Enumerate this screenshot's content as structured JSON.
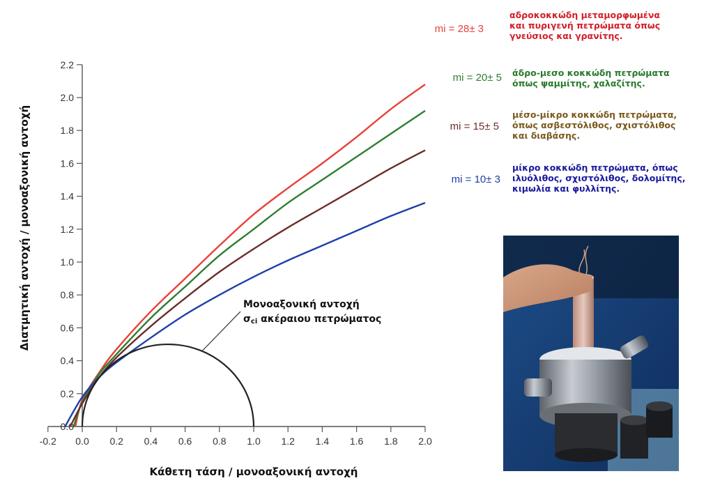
{
  "chart_data": {
    "type": "line",
    "xlabel": "Κάθετη τάση / μονοαξονική αντοχή",
    "ylabel": "Διατμητική αντοχή / μονοαξονική αντοχή",
    "xlim": [
      -0.2,
      2.0
    ],
    "ylim": [
      0.0,
      2.2
    ],
    "xticks": [
      "-0.2",
      "0.0",
      "0.2",
      "0.4",
      "0.6",
      "0.8",
      "1.0",
      "1.2",
      "1.4",
      "1.6",
      "1.8",
      "2.0"
    ],
    "yticks": [
      "0.0",
      "0.2",
      "0.4",
      "0.6",
      "0.8",
      "1.0",
      "1.2",
      "1.4",
      "1.6",
      "1.8",
      "2.0",
      "2.2"
    ],
    "grid": false,
    "series": [
      {
        "name": "mi = 28± 3",
        "color": "#e8413a",
        "description": [
          "αδροκοκκώδη μεταμορφωμένα",
          "και πυριγενή πετρώματα όπως",
          "γνεύσιος και γρανίτης."
        ],
        "description_color": "#d21f2a",
        "x": [
          -0.04,
          0.0,
          0.1,
          0.2,
          0.4,
          0.6,
          0.8,
          1.0,
          1.2,
          1.4,
          1.6,
          1.8,
          2.0
        ],
        "y": [
          0.0,
          0.16,
          0.33,
          0.47,
          0.7,
          0.9,
          1.1,
          1.29,
          1.45,
          1.6,
          1.76,
          1.93,
          2.08
        ]
      },
      {
        "name": "mi = 20± 5",
        "color": "#2f7d32",
        "description": [
          "άδρο-μεσο κοκκώδη πετρώματα",
          "όπως ψαμμίτης, χαλαζίτης."
        ],
        "description_color": "#2a7a2e",
        "x": [
          -0.05,
          0.0,
          0.1,
          0.2,
          0.4,
          0.6,
          0.8,
          1.0,
          1.2,
          1.4,
          1.6,
          1.8,
          2.0
        ],
        "y": [
          0.0,
          0.15,
          0.32,
          0.44,
          0.66,
          0.85,
          1.04,
          1.2,
          1.36,
          1.5,
          1.64,
          1.78,
          1.92
        ]
      },
      {
        "name": "mi = 15± 5",
        "color": "#6b2d2a",
        "description": [
          "μέσο-μίκρο κοκκώδη πετρώματα,",
          "όπως ασβεστόλιθος, σχιστόλιθος",
          "και διαβάσης."
        ],
        "description_color": "#7a5a1e",
        "x": [
          -0.07,
          0.0,
          0.1,
          0.2,
          0.4,
          0.6,
          0.8,
          1.0,
          1.2,
          1.4,
          1.6,
          1.8,
          2.0
        ],
        "y": [
          0.0,
          0.14,
          0.3,
          0.42,
          0.61,
          0.78,
          0.94,
          1.08,
          1.21,
          1.33,
          1.45,
          1.57,
          1.68
        ]
      },
      {
        "name": "mi = 10± 3",
        "color": "#1f3fa8",
        "description": [
          "μίκρο κοκκώδη πετρώματα, όπως",
          "ιλυόλιθος, σχιστόλιθος, δολομίτης,",
          "κιμωλία και φυλλίτης."
        ],
        "description_color": "#1a1a9e",
        "x": [
          -0.1,
          0.0,
          0.1,
          0.2,
          0.4,
          0.6,
          0.8,
          1.0,
          1.2,
          1.4,
          1.6,
          1.8,
          2.0
        ],
        "y": [
          0.0,
          0.18,
          0.3,
          0.39,
          0.54,
          0.68,
          0.8,
          0.91,
          1.01,
          1.1,
          1.19,
          1.28,
          1.36
        ]
      }
    ],
    "mohr_circle": {
      "center": 0.5,
      "radius": 0.5,
      "color": "#222222",
      "annotation": [
        "Μονοαξονική αντοχή",
        "σ",
        "ci",
        " ακέραιου πετρώματος"
      ],
      "annotation_point": [
        0.7,
        0.46
      ]
    }
  },
  "photo": {
    "label": "photo of rock triaxial test cell"
  }
}
